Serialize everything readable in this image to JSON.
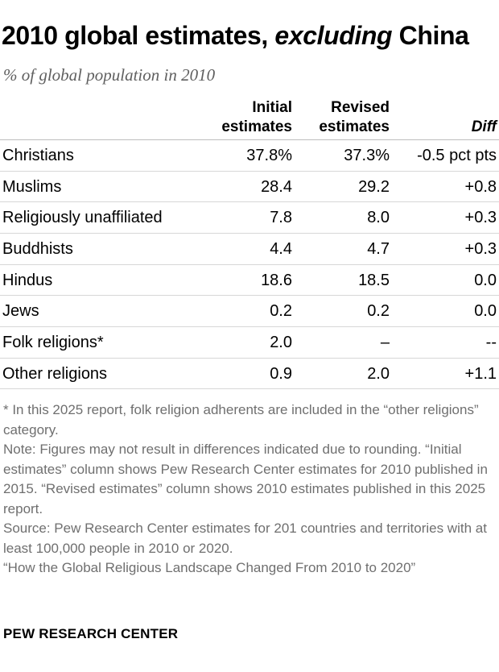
{
  "title_part1": "2010 global estimates, ",
  "title_emphasis": "excluding",
  "title_part2": " China",
  "subtitle": "% of global population in 2010",
  "headers": {
    "initial_line1": "Initial",
    "initial_line2": "estimates",
    "revised_line1": "Revised",
    "revised_line2": "estimates",
    "diff": "Diff"
  },
  "chart_data": {
    "type": "table",
    "columns": [
      "Initial estimates",
      "Revised estimates",
      "Diff"
    ],
    "rows": [
      {
        "label": "Christians",
        "initial": "37.8%",
        "revised": "37.3%",
        "diff": "-0.5 pct pts"
      },
      {
        "label": "Muslims",
        "initial": "28.4",
        "revised": "29.2",
        "diff": "+0.8"
      },
      {
        "label": "Religiously unaffiliated",
        "initial": "7.8",
        "revised": "8.0",
        "diff": "+0.3"
      },
      {
        "label": "Buddhists",
        "initial": "4.4",
        "revised": "4.7",
        "diff": "+0.3"
      },
      {
        "label": "Hindus",
        "initial": "18.6",
        "revised": "18.5",
        "diff": "0.0"
      },
      {
        "label": "Jews",
        "initial": "0.2",
        "revised": "0.2",
        "diff": "0.0"
      },
      {
        "label": "Folk religions*",
        "initial": "2.0",
        "revised": "–",
        "diff": "--"
      },
      {
        "label": "Other religions",
        "initial": "0.9",
        "revised": "2.0",
        "diff": "+1.1"
      }
    ]
  },
  "notes": {
    "footnote": "* In this 2025 report, folk religion adherents are included in the “other religions” category.",
    "note": "Note: Figures may not result in differences indicated due to rounding. “Initial estimates” column shows Pew Research Center estimates for 2010 published in 2015. “Revised estimates” column shows 2010 estimates published in this 2025 report.",
    "source": "Source: Pew Research Center estimates for 201 countries and territories with at least 100,000 people in 2010 or 2020.",
    "report": "“How the Global Religious Landscape Changed From 2010 to 2020”"
  },
  "brand": "PEW RESEARCH CENTER"
}
